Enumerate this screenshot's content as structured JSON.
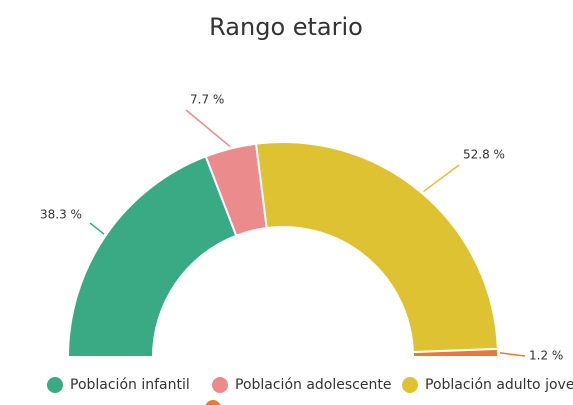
{
  "chart_data": {
    "type": "semi-donut",
    "title": "Rango etario",
    "categories": [
      "Población infantil",
      "Población adolescente",
      "Población adulto joven",
      null
    ],
    "values": [
      38.3,
      7.7,
      52.8,
      1.2
    ],
    "value_labels": [
      "38.3 %",
      "7.7 %",
      "52.8 %",
      "1.2 %"
    ],
    "colors": [
      "#3aaa85",
      "#ec8b8b",
      "#dfc232",
      "#e8793a"
    ]
  }
}
